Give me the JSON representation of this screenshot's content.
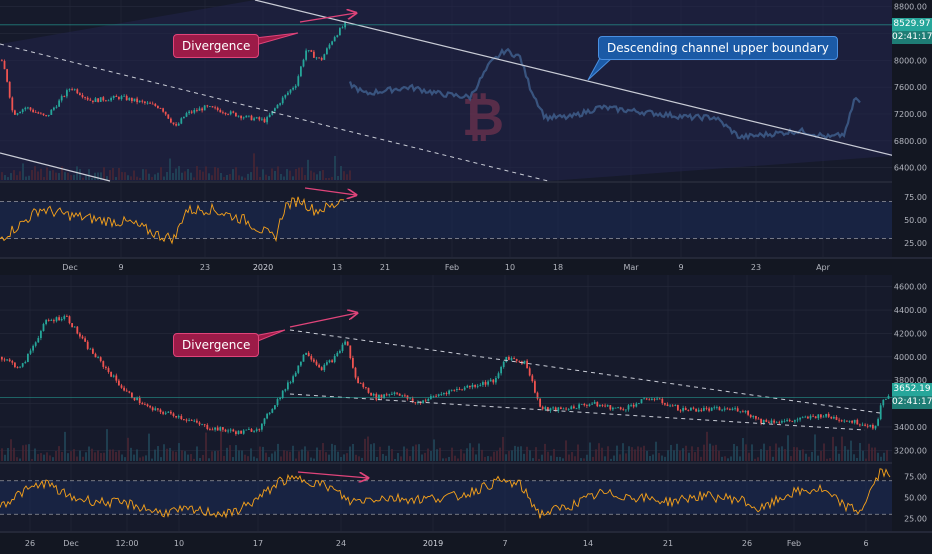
{
  "colors": {
    "background": "#131722",
    "plot_bg": "#161a2b",
    "channel_fill": "#23254a",
    "grid": "#262a3c",
    "up": "#26a69a",
    "down": "#ef5350",
    "ghost": "#3d5a86",
    "rsi": "#f7a21b",
    "divergence": "#e0447a",
    "axis_text": "#b2b5be",
    "price_tag": "#26a69a"
  },
  "top": {
    "watermark": "bitcoin-icon",
    "annotation_divergence": "Divergence",
    "annotation_channel": "Descending channel upper boundary",
    "last_price": "8529.97",
    "countdown": "02:41:17"
  },
  "bottom": {
    "annotation_divergence": "Divergence",
    "last_price": "3652.19",
    "countdown": "02:41:17"
  },
  "chart_data": [
    {
      "type": "candlestick",
      "role": "top-price",
      "title": "",
      "yticks": [
        "6400.00",
        "6800.00",
        "7200.00",
        "7600.00",
        "8000.00",
        "8400.00",
        "8800.00"
      ],
      "ylim": [
        6200,
        8900
      ],
      "xticks": [
        "Dec",
        "9",
        "23",
        "2020",
        "13",
        "21",
        "Feb",
        "10",
        "18",
        "Mar",
        "9",
        "23",
        "Apr"
      ],
      "price_path": [
        [
          0,
          8000
        ],
        [
          5,
          7800
        ],
        [
          12,
          7200
        ],
        [
          25,
          7300
        ],
        [
          45,
          7150
        ],
        [
          70,
          7600
        ],
        [
          90,
          7400
        ],
        [
          120,
          7450
        ],
        [
          160,
          7300
        ],
        [
          175,
          7000
        ],
        [
          185,
          7200
        ],
        [
          205,
          7300
        ],
        [
          220,
          7250
        ],
        [
          245,
          7150
        ],
        [
          265,
          7100
        ],
        [
          280,
          7400
        ],
        [
          295,
          7650
        ],
        [
          305,
          8150
        ],
        [
          320,
          8000
        ],
        [
          333,
          8350
        ],
        [
          345,
          8550
        ]
      ],
      "ghost_path": [
        [
          350,
          7650
        ],
        [
          365,
          7500
        ],
        [
          385,
          7550
        ],
        [
          410,
          7600
        ],
        [
          440,
          7500
        ],
        [
          470,
          7450
        ],
        [
          490,
          7950
        ],
        [
          505,
          8150
        ],
        [
          520,
          8050
        ],
        [
          530,
          7600
        ],
        [
          545,
          7150
        ],
        [
          570,
          7150
        ],
        [
          600,
          7300
        ],
        [
          630,
          7250
        ],
        [
          660,
          7200
        ],
        [
          690,
          7150
        ],
        [
          715,
          7150
        ],
        [
          740,
          6850
        ],
        [
          770,
          6900
        ],
        [
          800,
          6950
        ],
        [
          830,
          6850
        ],
        [
          845,
          6900
        ],
        [
          855,
          7450
        ],
        [
          860,
          7350
        ]
      ],
      "channel_upper": [
        [
          255,
          0
        ],
        [
          895,
          156
        ]
      ],
      "channel_lower_dashed": [
        [
          0,
          44
        ],
        [
          548,
          181
        ]
      ],
      "channel_bottom_solid": [
        [
          0,
          153
        ],
        [
          110,
          181
        ]
      ],
      "last_price": 8529.97
    },
    {
      "type": "line",
      "role": "top-rsi",
      "yticks": [
        "25.00",
        "50.00",
        "75.00"
      ],
      "ylim": [
        10,
        90
      ],
      "bands": [
        30,
        70
      ],
      "series": [
        {
          "values_path": [
            [
              0,
              30
            ],
            [
              20,
              45
            ],
            [
              40,
              62
            ],
            [
              70,
              55
            ],
            [
              100,
              50
            ],
            [
              130,
              47
            ],
            [
              160,
              33
            ],
            [
              175,
              30
            ],
            [
              185,
              60
            ],
            [
              210,
              62
            ],
            [
              245,
              50
            ],
            [
              275,
              30
            ],
            [
              285,
              65
            ],
            [
              300,
              72
            ],
            [
              315,
              60
            ],
            [
              335,
              66
            ],
            [
              345,
              78
            ]
          ]
        }
      ]
    },
    {
      "type": "candlestick",
      "role": "bottom-price",
      "title": "",
      "yticks": [
        "3200.00",
        "3400.00",
        "3600.00",
        "3800.00",
        "4000.00",
        "4200.00",
        "4400.00",
        "4600.00"
      ],
      "ylim": [
        3100,
        4700
      ],
      "xticks": [
        "26",
        "Dec",
        "12:00",
        "10",
        "17",
        "24",
        "2019",
        "7",
        "14",
        "21",
        "26",
        "Feb",
        "6"
      ],
      "price_path": [
        [
          0,
          4000
        ],
        [
          20,
          3900
        ],
        [
          45,
          4300
        ],
        [
          65,
          4350
        ],
        [
          85,
          4100
        ],
        [
          105,
          3900
        ],
        [
          125,
          3700
        ],
        [
          150,
          3550
        ],
        [
          175,
          3500
        ],
        [
          205,
          3400
        ],
        [
          240,
          3350
        ],
        [
          260,
          3400
        ],
        [
          270,
          3550
        ],
        [
          290,
          3800
        ],
        [
          305,
          4050
        ],
        [
          320,
          3900
        ],
        [
          335,
          4000
        ],
        [
          345,
          4150
        ],
        [
          355,
          3800
        ],
        [
          375,
          3650
        ],
        [
          395,
          3700
        ],
        [
          415,
          3600
        ],
        [
          445,
          3700
        ],
        [
          470,
          3750
        ],
        [
          495,
          3800
        ],
        [
          505,
          4000
        ],
        [
          525,
          3950
        ],
        [
          540,
          3550
        ],
        [
          560,
          3550
        ],
        [
          590,
          3600
        ],
        [
          620,
          3550
        ],
        [
          650,
          3650
        ],
        [
          680,
          3550
        ],
        [
          710,
          3550
        ],
        [
          740,
          3550
        ],
        [
          760,
          3450
        ],
        [
          790,
          3450
        ],
        [
          820,
          3500
        ],
        [
          850,
          3450
        ],
        [
          875,
          3400
        ],
        [
          882,
          3650
        ],
        [
          890,
          3650
        ]
      ],
      "channel_upper_dashed": [
        [
          290,
          330
        ],
        [
          880,
          413
        ]
      ],
      "channel_lower_dashed": [
        [
          290,
          394
        ],
        [
          865,
          430
        ]
      ],
      "last_price": 3652.19
    },
    {
      "type": "line",
      "role": "bottom-rsi",
      "yticks": [
        "25.00",
        "50.00",
        "75.00"
      ],
      "ylim": [
        10,
        90
      ],
      "bands": [
        30,
        70
      ],
      "series": [
        {
          "values_path": [
            [
              0,
              40
            ],
            [
              20,
              55
            ],
            [
              45,
              68
            ],
            [
              70,
              50
            ],
            [
              100,
              45
            ],
            [
              130,
              42
            ],
            [
              160,
              32
            ],
            [
              190,
              35
            ],
            [
              230,
              30
            ],
            [
              260,
              50
            ],
            [
              280,
              70
            ],
            [
              305,
              72
            ],
            [
              330,
              62
            ],
            [
              350,
              45
            ],
            [
              380,
              50
            ],
            [
              420,
              48
            ],
            [
              460,
              52
            ],
            [
              500,
              70
            ],
            [
              520,
              65
            ],
            [
              540,
              30
            ],
            [
              570,
              40
            ],
            [
              600,
              55
            ],
            [
              640,
              50
            ],
            [
              670,
              45
            ],
            [
              700,
              52
            ],
            [
              740,
              48
            ],
            [
              760,
              35
            ],
            [
              790,
              55
            ],
            [
              820,
              60
            ],
            [
              845,
              40
            ],
            [
              860,
              33
            ],
            [
              880,
              80
            ],
            [
              890,
              78
            ]
          ]
        }
      ]
    }
  ]
}
